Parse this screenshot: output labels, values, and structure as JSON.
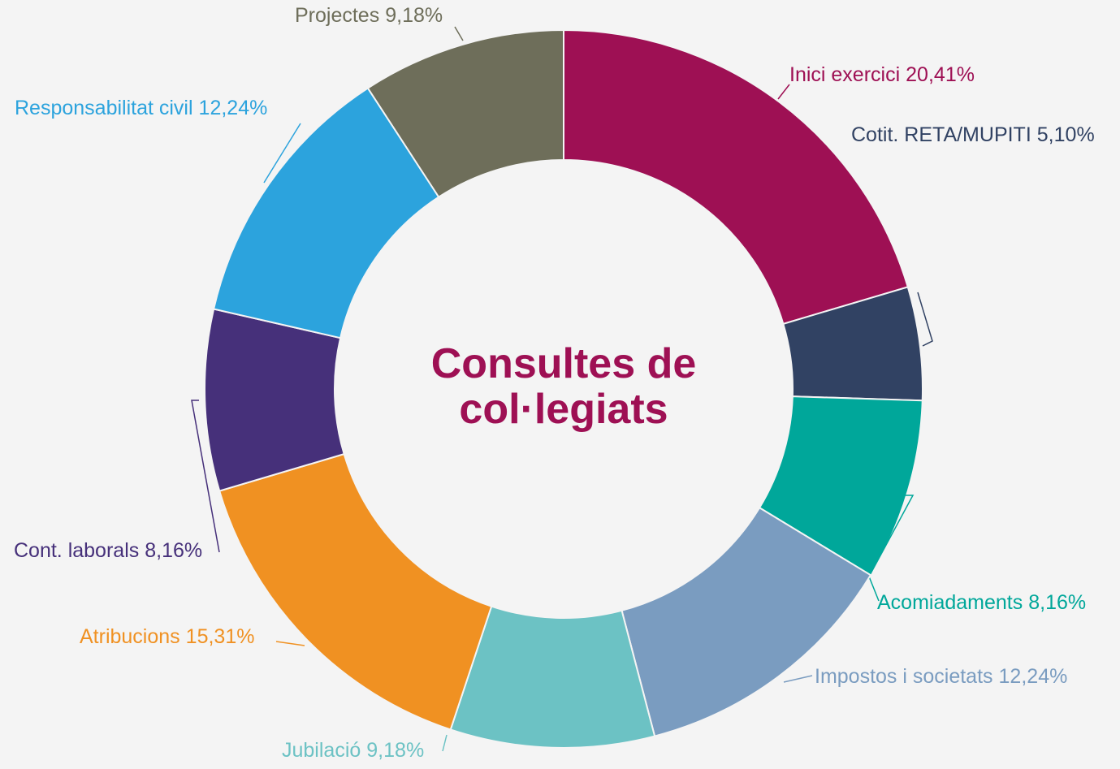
{
  "chart_data": {
    "type": "donut",
    "title": "Consultes de col·legiats",
    "categories": [
      "Inici exercici",
      "Cotit. RETA/MUPITI",
      "Acomiadaments",
      "Impostos i societats",
      "Jubilació",
      "Atribucions",
      "Cont. laborals",
      "Responsabilitat civil",
      "Projectes"
    ],
    "values": [
      20.41,
      5.1,
      8.16,
      12.24,
      9.18,
      15.31,
      8.16,
      12.24,
      9.18
    ],
    "value_labels": [
      "20,41%",
      "5,10%",
      "8,16%",
      "12,24%",
      "9,18%",
      "15,31%",
      "8,16%",
      "12,24%",
      "9,18%"
    ],
    "colors": [
      "#9e1054",
      "#314263",
      "#00a79a",
      "#7a9cc0",
      "#6cc2c4",
      "#f09122",
      "#46307a",
      "#2ca3dd",
      "#6e6e5a"
    ]
  }
}
